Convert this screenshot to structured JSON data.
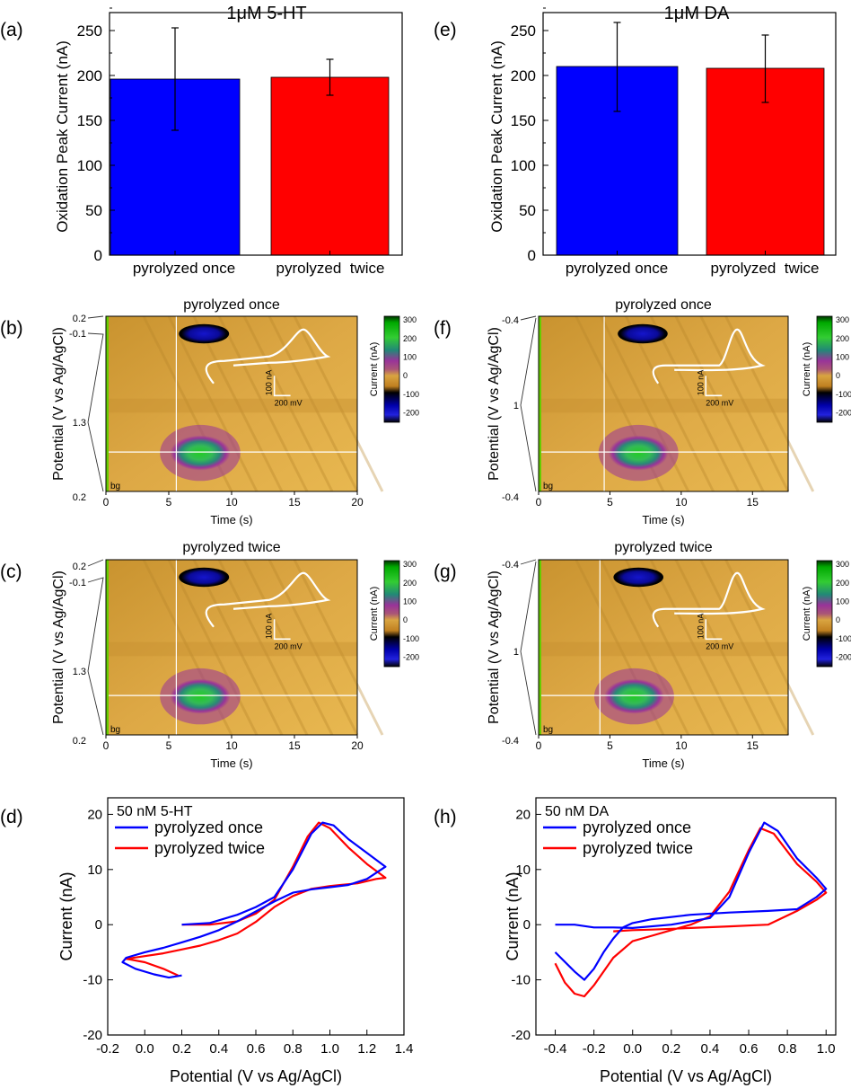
{
  "colors": {
    "once": "#0000FF",
    "twice": "#FF0000",
    "heat_bg": "#D9A441",
    "trace": "#FFFFFF",
    "bg_label": "#66CC00"
  },
  "bars": [
    {
      "panel_label": "(a)",
      "title": "1μM 5-HT",
      "ylabel": "Oxidation Peak Current (nA)",
      "ylim": [
        0,
        270
      ],
      "yticks": [
        "0",
        "50",
        "100",
        "150",
        "200",
        "250"
      ],
      "chart_data": {
        "type": "bar",
        "categories": [
          "pyrolyzed once",
          "pyrolyzed  twice"
        ],
        "values": [
          196,
          198
        ],
        "error_low": [
          139,
          178
        ],
        "error_high": [
          253,
          218
        ],
        "ylim": [
          0,
          270
        ]
      }
    },
    {
      "panel_label": "(e)",
      "title": "1μM DA",
      "ylabel": "Oxidation Peak Current (nA)",
      "ylim": [
        0,
        270
      ],
      "yticks": [
        "0",
        "50",
        "100",
        "150",
        "200",
        "250"
      ],
      "chart_data": {
        "type": "bar",
        "categories": [
          "pyrolyzed once",
          "pyrolyzed  twice"
        ],
        "values": [
          210,
          208
        ],
        "error_low": [
          160,
          170
        ],
        "error_high": [
          259,
          245
        ],
        "ylim": [
          0,
          270
        ]
      }
    }
  ],
  "heatmaps": [
    {
      "panel_label": "(b)",
      "title": "pyrolyzed once",
      "potential_labels": [
        "0.2",
        "-0.1",
        "1.3",
        "0.2"
      ],
      "ylabel": "Potential (V vs Ag/AgCl)",
      "xlabel": "Time (s)",
      "xticks": [
        "0",
        "5",
        "10",
        "15",
        "20"
      ],
      "xmax": 20,
      "bg_label": "bg",
      "colorbar_label": "Current (nA)",
      "colorbar_ticks": [
        "300",
        "200",
        "100",
        "0",
        "-100",
        "-200"
      ],
      "inset_scale_current": "100 nA",
      "inset_scale_potential": "200 mV",
      "chart_data": {
        "type": "heatmap",
        "stim_time_s": 5.6,
        "oxidation_peak_time_s": 7.5,
        "colorbar_range_nA": [
          -250,
          320
        ]
      }
    },
    {
      "panel_label": "(c)",
      "title": "pyrolyzed twice",
      "potential_labels": [
        "0.2",
        "-0.1",
        "1.3",
        "0.2"
      ],
      "ylabel": "Potential (V vs Ag/AgCl)",
      "xlabel": "Time (s)",
      "xticks": [
        "0",
        "5",
        "10",
        "15",
        "20"
      ],
      "xmax": 20,
      "bg_label": "bg",
      "colorbar_label": "Current (nA)",
      "colorbar_ticks": [
        "300",
        "200",
        "100",
        "0",
        "-100",
        "-200"
      ],
      "inset_scale_current": "100 nA",
      "inset_scale_potential": "200 mV",
      "chart_data": {
        "type": "heatmap",
        "stim_time_s": 5.6,
        "oxidation_peak_time_s": 7.5,
        "colorbar_range_nA": [
          -250,
          320
        ]
      }
    },
    {
      "panel_label": "(f)",
      "title": "pyrolyzed once",
      "potential_labels": [
        "-0.4",
        "1",
        "-0.4"
      ],
      "ylabel": "Potential (V vs Ag/AgCl)",
      "xlabel": "Time (s)",
      "xticks": [
        "0",
        "5",
        "10",
        "15"
      ],
      "xmax": 17.5,
      "bg_label": "bg",
      "colorbar_label": "Current (nA)",
      "colorbar_ticks": [
        "300",
        "200",
        "100",
        "0",
        "-100",
        "-200"
      ],
      "inset_scale_current": "100 nA",
      "inset_scale_potential": "200 mV",
      "chart_data": {
        "type": "heatmap",
        "stim_time_s": 4.6,
        "oxidation_peak_time_s": 7,
        "colorbar_range_nA": [
          -250,
          320
        ]
      }
    },
    {
      "panel_label": "(g)",
      "title": "pyrolyzed twice",
      "potential_labels": [
        "-0.4",
        "1",
        "-0.4"
      ],
      "ylabel": "Potential (V vs Ag/AgCl)",
      "xlabel": "Time (s)",
      "xticks": [
        "0",
        "5",
        "10",
        "15"
      ],
      "xmax": 17.5,
      "bg_label": "bg",
      "colorbar_label": "Current (nA)",
      "colorbar_ticks": [
        "300",
        "200",
        "100",
        "0",
        "-100",
        "-200"
      ],
      "inset_scale_current": "100 nA",
      "inset_scale_potential": "200 mV",
      "chart_data": {
        "type": "heatmap",
        "stim_time_s": 4.3,
        "oxidation_peak_time_s": 6.7,
        "colorbar_range_nA": [
          -250,
          320
        ]
      }
    }
  ],
  "cvs": [
    {
      "panel_label": "(d)",
      "title": "50 nM 5-HT",
      "xlabel": "Potential (V vs Ag/AgCl)",
      "ylabel": "Current (nA)",
      "xticks": [
        "-0.2",
        "0.0",
        "0.2",
        "0.4",
        "0.6",
        "0.8",
        "1.0",
        "1.2",
        "1.4"
      ],
      "yticks": [
        "-20",
        "-10",
        "0",
        "10",
        "20"
      ],
      "legend": [
        "pyrolyzed once",
        "pyrolyzed twice"
      ],
      "chart_data": {
        "type": "line",
        "xlim": [
          -0.2,
          1.4
        ],
        "ylim": [
          -20,
          23
        ],
        "series": [
          {
            "name": "pyrolyzed once",
            "points": [
              [
                0.2,
                0
              ],
              [
                0.35,
                0.3
              ],
              [
                0.5,
                1.8
              ],
              [
                0.6,
                3.2
              ],
              [
                0.7,
                5
              ],
              [
                0.8,
                10
              ],
              [
                0.9,
                16.5
              ],
              [
                0.96,
                18.5
              ],
              [
                1.02,
                18
              ],
              [
                1.1,
                15.5
              ],
              [
                1.2,
                13
              ],
              [
                1.3,
                10.5
              ],
              [
                1.2,
                8.3
              ],
              [
                1.1,
                7.2
              ],
              [
                1.0,
                6.8
              ],
              [
                0.9,
                6.4
              ],
              [
                0.8,
                5.8
              ],
              [
                0.7,
                4.2
              ],
              [
                0.6,
                2.4
              ],
              [
                0.5,
                0.6
              ],
              [
                0.4,
                -1
              ],
              [
                0.3,
                -2.2
              ],
              [
                0.2,
                -3.2
              ],
              [
                0.1,
                -4.2
              ],
              [
                0,
                -5
              ],
              [
                -0.1,
                -6
              ],
              [
                -0.12,
                -6.8
              ],
              [
                -0.05,
                -8
              ],
              [
                0.05,
                -9
              ],
              [
                0.13,
                -9.6
              ],
              [
                0.2,
                -9.2
              ]
            ]
          },
          {
            "name": "pyrolyzed twice",
            "points": [
              [
                0.2,
                0
              ],
              [
                0.35,
                0
              ],
              [
                0.5,
                0.6
              ],
              [
                0.6,
                2
              ],
              [
                0.7,
                4.5
              ],
              [
                0.8,
                10.5
              ],
              [
                0.88,
                16
              ],
              [
                0.94,
                18.5
              ],
              [
                1.0,
                17.5
              ],
              [
                1.1,
                14
              ],
              [
                1.2,
                11
              ],
              [
                1.3,
                8.5
              ],
              [
                1.25,
                8.3
              ],
              [
                1.15,
                7.5
              ],
              [
                1.0,
                7
              ],
              [
                0.9,
                6.5
              ],
              [
                0.8,
                5.2
              ],
              [
                0.7,
                3.2
              ],
              [
                0.6,
                0.5
              ],
              [
                0.5,
                -1.6
              ],
              [
                0.4,
                -2.8
              ],
              [
                0.3,
                -3.8
              ],
              [
                0.2,
                -4.5
              ],
              [
                0.1,
                -5.2
              ],
              [
                0,
                -5.7
              ],
              [
                -0.1,
                -6.2
              ],
              [
                -0.08,
                -6.3
              ],
              [
                0,
                -6.8
              ],
              [
                0.1,
                -8
              ],
              [
                0.18,
                -9.2
              ]
            ]
          }
        ]
      }
    },
    {
      "panel_label": "(h)",
      "title": "50 nM DA",
      "xlabel": "Potential (V vs Ag/AgCl)",
      "ylabel": "Current (nA)",
      "xticks": [
        "-0.4",
        "-0.2",
        "0.0",
        "0.2",
        "0.4",
        "0.6",
        "0.8",
        "1.0"
      ],
      "yticks": [
        "-20",
        "-10",
        "0",
        "10",
        "20"
      ],
      "legend": [
        "pyrolyzed once",
        "pyrolyzed twice"
      ],
      "chart_data": {
        "type": "line",
        "xlim": [
          -0.5,
          1.05
        ],
        "ylim": [
          -20,
          23
        ],
        "series": [
          {
            "name": "pyrolyzed once",
            "points": [
              [
                -0.4,
                0
              ],
              [
                -0.3,
                0
              ],
              [
                -0.2,
                -0.5
              ],
              [
                -0.1,
                -0.5
              ],
              [
                0,
                -0.6
              ],
              [
                0.2,
                0
              ],
              [
                0.4,
                1.2
              ],
              [
                0.5,
                5
              ],
              [
                0.6,
                13
              ],
              [
                0.68,
                18.5
              ],
              [
                0.75,
                17
              ],
              [
                0.85,
                12
              ],
              [
                0.95,
                8.5
              ],
              [
                1.0,
                6.5
              ],
              [
                0.95,
                5
              ],
              [
                0.85,
                2.8
              ],
              [
                0.7,
                2.5
              ],
              [
                0.5,
                2.2
              ],
              [
                0.3,
                1.8
              ],
              [
                0.1,
                1
              ],
              [
                0,
                0.3
              ],
              [
                -0.05,
                -0.5
              ],
              [
                -0.1,
                -2.5
              ],
              [
                -0.15,
                -5
              ],
              [
                -0.2,
                -8
              ],
              [
                -0.25,
                -10
              ],
              [
                -0.3,
                -8.5
              ],
              [
                -0.4,
                -5
              ]
            ]
          },
          {
            "name": "pyrolyzed twice",
            "points": [
              [
                -0.4,
                -7
              ],
              [
                -0.35,
                -10.5
              ],
              [
                -0.3,
                -12.5
              ],
              [
                -0.25,
                -13
              ],
              [
                -0.2,
                -11
              ],
              [
                -0.1,
                -6
              ],
              [
                0,
                -3
              ],
              [
                0.1,
                -2
              ],
              [
                0.2,
                -1
              ],
              [
                0.3,
                0
              ],
              [
                0.4,
                1.5
              ],
              [
                0.5,
                6
              ],
              [
                0.6,
                13.5
              ],
              [
                0.66,
                17.5
              ],
              [
                0.73,
                16.5
              ],
              [
                0.85,
                11
              ],
              [
                0.95,
                7.8
              ],
              [
                1.0,
                5.8
              ],
              [
                0.95,
                4.5
              ],
              [
                0.85,
                2.5
              ],
              [
                0.7,
                0
              ],
              [
                0.5,
                -0.3
              ],
              [
                0.3,
                -0.6
              ],
              [
                0.1,
                -0.9
              ],
              [
                0,
                -1
              ],
              [
                -0.1,
                -1.2
              ]
            ]
          }
        ]
      }
    }
  ]
}
